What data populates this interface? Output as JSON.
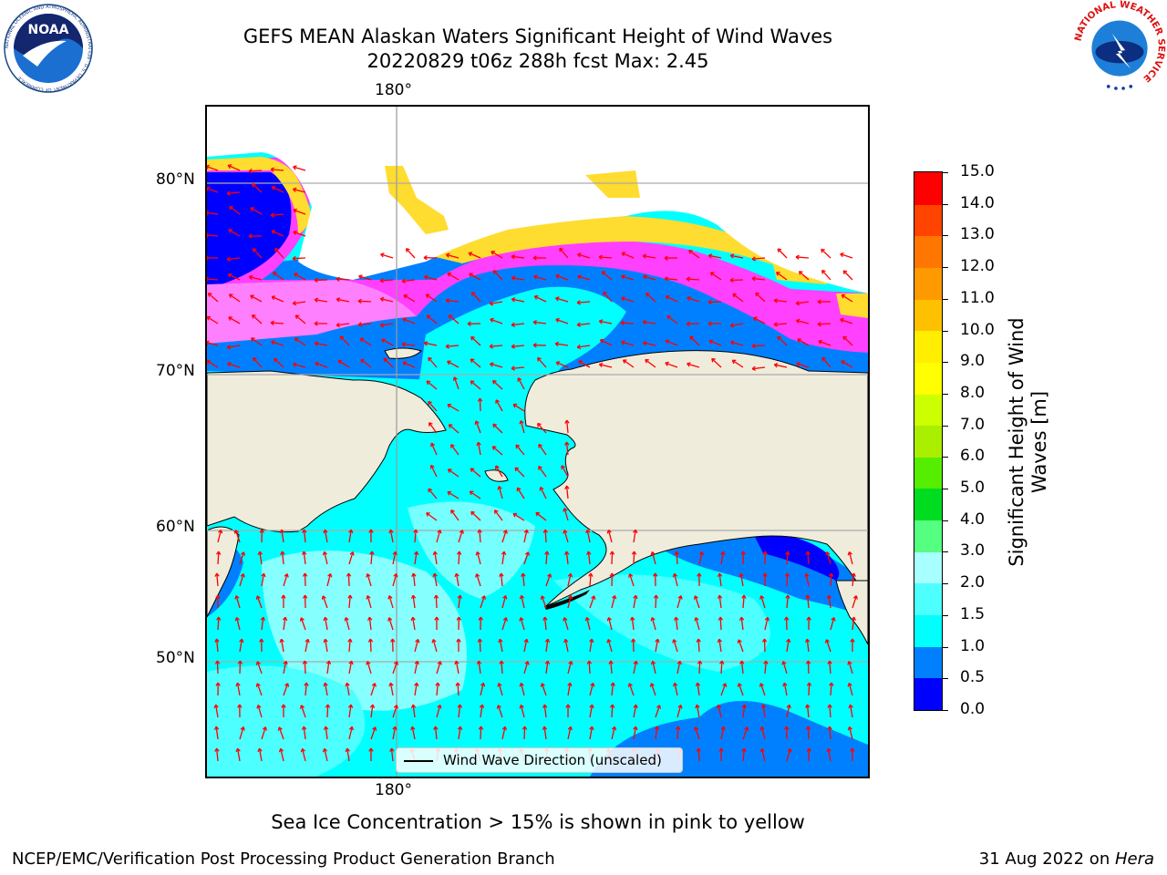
{
  "title_line1": "GEFS MEAN Alaskan Waters Significant Height of Wind Waves",
  "title_line2": "20220829 t06z 288h fcst   Max: 2.45",
  "map": {
    "lon_labels": [
      "180°",
      "180°"
    ],
    "lat_labels": [
      "80°N",
      "70°N",
      "60°N",
      "50°N"
    ],
    "legend_label": "Wind Wave Direction (unscaled)",
    "colors": {
      "land": "#efecdc",
      "ocean_low": "#0000ff",
      "ocean_mid": "#0080ff",
      "ocean_a": "#00ffff",
      "ocean_b": "#4dffff",
      "ocean_c": "#a8ffff",
      "ice_pink": "#ff40ff",
      "ice_magenta": "#ff80ff",
      "ice_yellow": "#ffdc30",
      "arrow": "#ff0000"
    }
  },
  "colorbar": {
    "label": "Significant Height of Wind Waves [m]",
    "ticks": [
      "0.0",
      "0.5",
      "1.0",
      "1.5",
      "2.0",
      "3.0",
      "4.0",
      "5.0",
      "6.0",
      "7.0",
      "8.0",
      "9.0",
      "10.0",
      "11.0",
      "12.0",
      "13.0",
      "14.0",
      "15.0"
    ],
    "colors": [
      "#0000ff",
      "#0080ff",
      "#00ffff",
      "#4dffff",
      "#a8ffff",
      "#55ff80",
      "#00dd20",
      "#55ee00",
      "#aaee00",
      "#ccff00",
      "#ffff00",
      "#ffee00",
      "#ffc000",
      "#ff9900",
      "#ff7700",
      "#ff4400",
      "#ff0000"
    ]
  },
  "note": "Sea Ice Concentration > 15% is shown in pink to yellow",
  "footer_left": "NCEP/EMC/Verification Post Processing Product Generation Branch",
  "footer_right_prefix": "31 Aug 2022 on ",
  "footer_right_host": "Hera",
  "logos": {
    "noaa_text": "NOAA",
    "noaa_ring": "NATIONAL OCEANIC AND ATMOSPHERIC ADMINISTRATION · U.S. DEPARTMENT OF COMMERCE",
    "nws_ring": "NATIONAL WEATHER SERVICE"
  }
}
